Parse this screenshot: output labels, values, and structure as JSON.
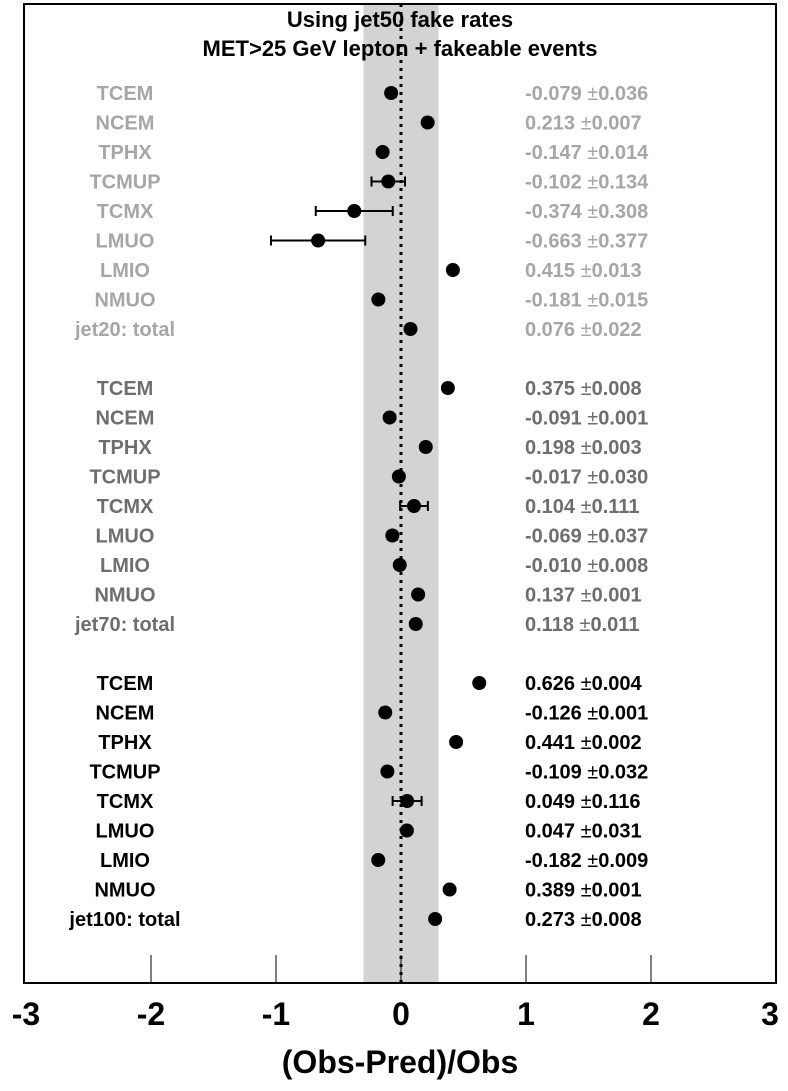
{
  "chart_data": {
    "type": "scatter",
    "title": [
      "Using jet50 fake rates",
      "MET>25 GeV lepton + fakeable events"
    ],
    "xlabel": "(Obs-Pred)/Obs",
    "xlim": [
      -3,
      3
    ],
    "xticks": [
      "-3",
      "-2",
      "-1",
      "0",
      "1",
      "2",
      "3"
    ],
    "band": [
      -0.3,
      0.3
    ],
    "reference_line": 0,
    "pm_symbol": "±",
    "colors": {
      "jet20": "#a6a6a6",
      "jet70": "#6e6e6e",
      "jet100": "#000000",
      "band": "#d3d3d3",
      "marker": "#000000"
    },
    "groups": [
      {
        "id": "jet20",
        "rows": [
          {
            "label": "TCEM",
            "value": -0.079,
            "error": 0.036,
            "val_text": "-0.079",
            "err_text": "0.036"
          },
          {
            "label": "NCEM",
            "value": 0.213,
            "error": 0.007,
            "val_text": "0.213",
            "err_text": "0.007"
          },
          {
            "label": "TPHX",
            "value": -0.147,
            "error": 0.014,
            "val_text": "-0.147",
            "err_text": "0.014"
          },
          {
            "label": "TCMUP",
            "value": -0.102,
            "error": 0.134,
            "val_text": "-0.102",
            "err_text": "0.134"
          },
          {
            "label": "TCMX",
            "value": -0.374,
            "error": 0.308,
            "val_text": "-0.374",
            "err_text": "0.308"
          },
          {
            "label": "LMUO",
            "value": -0.663,
            "error": 0.377,
            "val_text": "-0.663",
            "err_text": "0.377"
          },
          {
            "label": "LMIO",
            "value": 0.415,
            "error": 0.013,
            "val_text": "0.415",
            "err_text": "0.013"
          },
          {
            "label": "NMUO",
            "value": -0.181,
            "error": 0.015,
            "val_text": "-0.181",
            "err_text": "0.015"
          },
          {
            "label": "jet20: total",
            "value": 0.076,
            "error": 0.022,
            "val_text": "0.076",
            "err_text": "0.022",
            "total": true
          }
        ]
      },
      {
        "id": "jet70",
        "rows": [
          {
            "label": "TCEM",
            "value": 0.375,
            "error": 0.008,
            "val_text": "0.375",
            "err_text": "0.008"
          },
          {
            "label": "NCEM",
            "value": -0.091,
            "error": 0.001,
            "val_text": "-0.091",
            "err_text": "0.001"
          },
          {
            "label": "TPHX",
            "value": 0.198,
            "error": 0.003,
            "val_text": "0.198",
            "err_text": "0.003"
          },
          {
            "label": "TCMUP",
            "value": -0.017,
            "error": 0.03,
            "val_text": "-0.017",
            "err_text": "0.030"
          },
          {
            "label": "TCMX",
            "value": 0.104,
            "error": 0.111,
            "val_text": "0.104",
            "err_text": "0.111"
          },
          {
            "label": "LMUO",
            "value": -0.069,
            "error": 0.037,
            "val_text": "-0.069",
            "err_text": "0.037"
          },
          {
            "label": "LMIO",
            "value": -0.01,
            "error": 0.008,
            "val_text": "-0.010",
            "err_text": "0.008"
          },
          {
            "label": "NMUO",
            "value": 0.137,
            "error": 0.001,
            "val_text": "0.137",
            "err_text": "0.001"
          },
          {
            "label": "jet70: total",
            "value": 0.118,
            "error": 0.011,
            "val_text": "0.118",
            "err_text": "0.011",
            "total": true
          }
        ]
      },
      {
        "id": "jet100",
        "rows": [
          {
            "label": "TCEM",
            "value": 0.626,
            "error": 0.004,
            "val_text": "0.626",
            "err_text": "0.004"
          },
          {
            "label": "NCEM",
            "value": -0.126,
            "error": 0.001,
            "val_text": "-0.126",
            "err_text": "0.001"
          },
          {
            "label": "TPHX",
            "value": 0.441,
            "error": 0.002,
            "val_text": "0.441",
            "err_text": "0.002"
          },
          {
            "label": "TCMUP",
            "value": -0.109,
            "error": 0.032,
            "val_text": "-0.109",
            "err_text": "0.032"
          },
          {
            "label": "TCMX",
            "value": 0.049,
            "error": 0.116,
            "val_text": "0.049",
            "err_text": "0.116"
          },
          {
            "label": "LMUO",
            "value": 0.047,
            "error": 0.031,
            "val_text": "0.047",
            "err_text": "0.031"
          },
          {
            "label": "LMIO",
            "value": -0.182,
            "error": 0.009,
            "val_text": "-0.182",
            "err_text": "0.009"
          },
          {
            "label": "NMUO",
            "value": 0.389,
            "error": 0.001,
            "val_text": "0.389",
            "err_text": "0.001"
          },
          {
            "label": "jet100: total",
            "value": 0.273,
            "error": 0.008,
            "val_text": "0.273",
            "err_text": "0.008",
            "total": true
          }
        ]
      }
    ]
  }
}
